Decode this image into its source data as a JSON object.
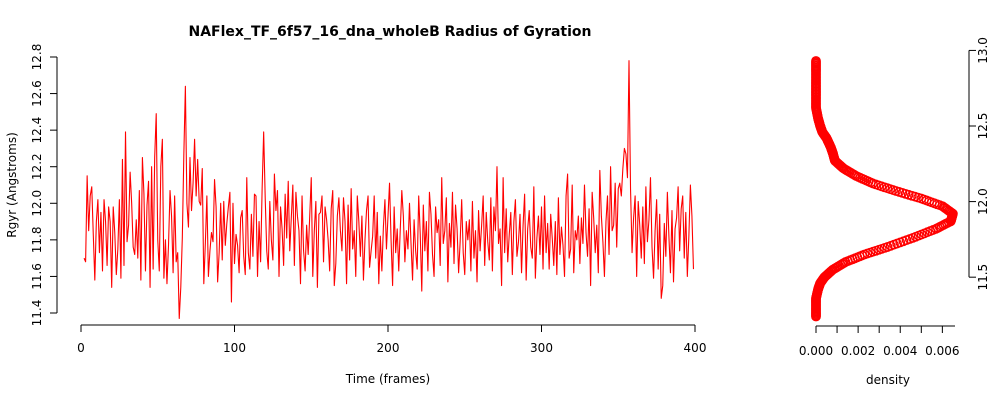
{
  "chart_data": [
    {
      "type": "line",
      "title": "NAFlex_TF_6f57_16_dna_wholeB Radius of Gyration",
      "xlabel": "Time (frames)",
      "ylabel": "Rgyr (Angstroms)",
      "xlim": [
        0,
        400
      ],
      "ylim": [
        11.4,
        12.8
      ],
      "x_ticks": [
        "0",
        "100",
        "200",
        "300",
        "400"
      ],
      "y_ticks": [
        "11.4",
        "11.6",
        "11.8",
        "12.0",
        "12.2",
        "12.4",
        "12.6",
        "12.8"
      ],
      "series_color": "#ff0000",
      "grid": false,
      "x_start": 2,
      "values": [
        11.7,
        11.68,
        12.15,
        11.85,
        12.04,
        12.09,
        11.83,
        11.58,
        11.9,
        12.02,
        11.73,
        11.95,
        11.63,
        12.02,
        11.9,
        11.66,
        11.98,
        11.9,
        11.54,
        11.98,
        11.84,
        11.61,
        11.75,
        12.02,
        11.59,
        12.24,
        11.66,
        12.39,
        11.79,
        11.88,
        12.17,
        12.0,
        11.76,
        11.72,
        11.91,
        11.7,
        12.07,
        11.58,
        12.25,
        12.05,
        11.63,
        11.99,
        12.12,
        11.54,
        12.2,
        11.64,
        12.25,
        12.49,
        11.8,
        11.63,
        12.2,
        12.35,
        11.59,
        11.8,
        11.56,
        11.77,
        12.07,
        11.93,
        11.62,
        12.04,
        11.68,
        11.73,
        11.37,
        11.54,
        11.81,
        12.27,
        12.64,
        12.0,
        11.87,
        12.25,
        11.96,
        12.11,
        12.35,
        12.04,
        12.24,
        12.01,
        11.99,
        12.19,
        11.56,
        11.78,
        12.04,
        11.6,
        11.74,
        11.84,
        11.79,
        12.13,
        11.98,
        11.57,
        11.73,
        12.0,
        11.69,
        12.01,
        11.77,
        11.89,
        11.98,
        12.06,
        11.46,
        12.0,
        11.67,
        11.83,
        11.77,
        11.62,
        11.92,
        11.96,
        11.71,
        11.61,
        12.14,
        11.73,
        11.64,
        11.94,
        11.71,
        12.05,
        12.04,
        11.6,
        11.9,
        11.68,
        12.08,
        12.39,
        12.03,
        11.74,
        11.64,
        12.01,
        11.8,
        11.69,
        12.16,
        11.96,
        12.07,
        11.6,
        11.98,
        11.86,
        11.66,
        12.05,
        11.81,
        12.12,
        11.74,
        11.92,
        12.1,
        11.66,
        12.06,
        11.93,
        11.85,
        11.56,
        12.04,
        11.74,
        11.63,
        11.88,
        11.72,
        11.93,
        12.14,
        11.6,
        11.85,
        12.01,
        11.54,
        11.94,
        11.95,
        12.04,
        11.68,
        11.98,
        11.91,
        11.8,
        11.63,
        11.97,
        12.07,
        11.55,
        11.67,
        11.93,
        12.03,
        11.85,
        11.74,
        12.03,
        11.9,
        11.56,
        11.99,
        11.69,
        12.08,
        11.75,
        11.85,
        11.6,
        12.04,
        11.9,
        11.71,
        11.93,
        11.58,
        11.8,
        11.96,
        12.04,
        11.65,
        11.74,
        11.82,
        12.04,
        11.7,
        11.95,
        11.56,
        11.82,
        11.63,
        11.87,
        12.02,
        11.75,
        11.93,
        12.11,
        11.8,
        11.55,
        11.98,
        11.73,
        11.86,
        11.63,
        11.86,
        12.07,
        11.93,
        11.68,
        11.85,
        11.75,
        12.0,
        11.78,
        11.58,
        11.91,
        11.74,
        11.64,
        12.04,
        11.83,
        11.52,
        11.99,
        11.74,
        11.9,
        11.63,
        12.06,
        11.94,
        11.72,
        11.6,
        11.98,
        11.84,
        11.91,
        11.66,
        12.14,
        11.78,
        11.85,
        12.03,
        11.57,
        11.89,
        11.76,
        12.06,
        11.67,
        11.99,
        11.86,
        11.62,
        11.79,
        12.02,
        11.73,
        11.61,
        11.9,
        11.8,
        11.91,
        11.63,
        12.01,
        11.7,
        11.85,
        11.57,
        11.96,
        11.74,
        11.88,
        12.04,
        11.66,
        11.95,
        11.79,
        11.69,
        12.03,
        11.63,
        11.98,
        11.85,
        12.2,
        11.78,
        11.86,
        11.55,
        12.14,
        11.73,
        11.97,
        11.68,
        11.83,
        11.95,
        11.61,
        11.9,
        12.02,
        11.71,
        11.79,
        11.94,
        11.62,
        11.88,
        12.05,
        11.58,
        11.86,
        11.96,
        11.76,
        11.7,
        12.09,
        11.59,
        11.81,
        11.93,
        11.72,
        11.98,
        11.64,
        12.04,
        11.73,
        11.89,
        11.64,
        11.94,
        11.81,
        11.66,
        11.9,
        11.61,
        12.03,
        11.72,
        11.87,
        11.77,
        11.6,
        12.04,
        12.16,
        11.7,
        11.75,
        12.1,
        11.62,
        11.85,
        11.8,
        11.93,
        11.67,
        11.92,
        11.78,
        12.1,
        11.84,
        11.71,
        11.97,
        11.55,
        12.06,
        11.92,
        11.73,
        11.88,
        11.62,
        12.18,
        11.93,
        11.79,
        11.6,
        11.9,
        12.04,
        11.72,
        12.2,
        11.85,
        11.88,
        12.11,
        11.76,
        12.08,
        12.11,
        12.04,
        12.19,
        12.3,
        12.27,
        12.14,
        12.78,
        12.08,
        11.73,
        11.92,
        12.04,
        11.6,
        12.01,
        11.88,
        11.7,
        11.98,
        11.67,
        12.09,
        11.79,
        11.91,
        12.14,
        11.76,
        11.59,
        11.85,
        12.02,
        11.64,
        11.94,
        11.48,
        11.55,
        11.89,
        11.71,
        12.06,
        11.82,
        11.62,
        11.96,
        11.57,
        11.86,
        11.92,
        12.09,
        11.74,
        11.97,
        12.04,
        11.7,
        11.95,
        11.6,
        11.82,
        12.1,
        11.93,
        11.64
      ]
    },
    {
      "type": "scatter",
      "title": "",
      "xlabel": "density",
      "ylabel": "",
      "xlim": [
        0,
        0.0066
      ],
      "ylim": [
        11.23,
        12.93
      ],
      "x_ticks": [
        "0.000",
        "0.002",
        "0.004",
        "0.006"
      ],
      "y_ticks": [
        "11.5",
        "12.0",
        "12.5",
        "13.0"
      ],
      "y_tick_values": [
        11.5,
        12.0,
        12.5,
        13.0
      ],
      "series_color": "#ff0000",
      "grid": false,
      "x": [
        0.0,
        0.0,
        0.0,
        0.0001,
        0.0002,
        0.0004,
        0.0008,
        0.0014,
        0.0023,
        0.0034,
        0.0046,
        0.0057,
        0.0064,
        0.0065,
        0.006,
        0.005,
        0.0038,
        0.0027,
        0.0019,
        0.0013,
        0.0009,
        0.0008,
        0.0007,
        0.0005,
        0.0003,
        0.0002,
        0.0001,
        0.0,
        0.0,
        0.0,
        0.0,
        0.0
      ],
      "y": [
        11.24,
        11.3,
        11.36,
        11.42,
        11.46,
        11.5,
        11.55,
        11.6,
        11.65,
        11.7,
        11.76,
        11.82,
        11.87,
        11.92,
        11.97,
        12.02,
        12.07,
        12.12,
        12.17,
        12.22,
        12.27,
        12.32,
        12.36,
        12.42,
        12.46,
        12.5,
        12.55,
        12.62,
        12.7,
        12.78,
        12.86,
        12.93
      ]
    }
  ]
}
